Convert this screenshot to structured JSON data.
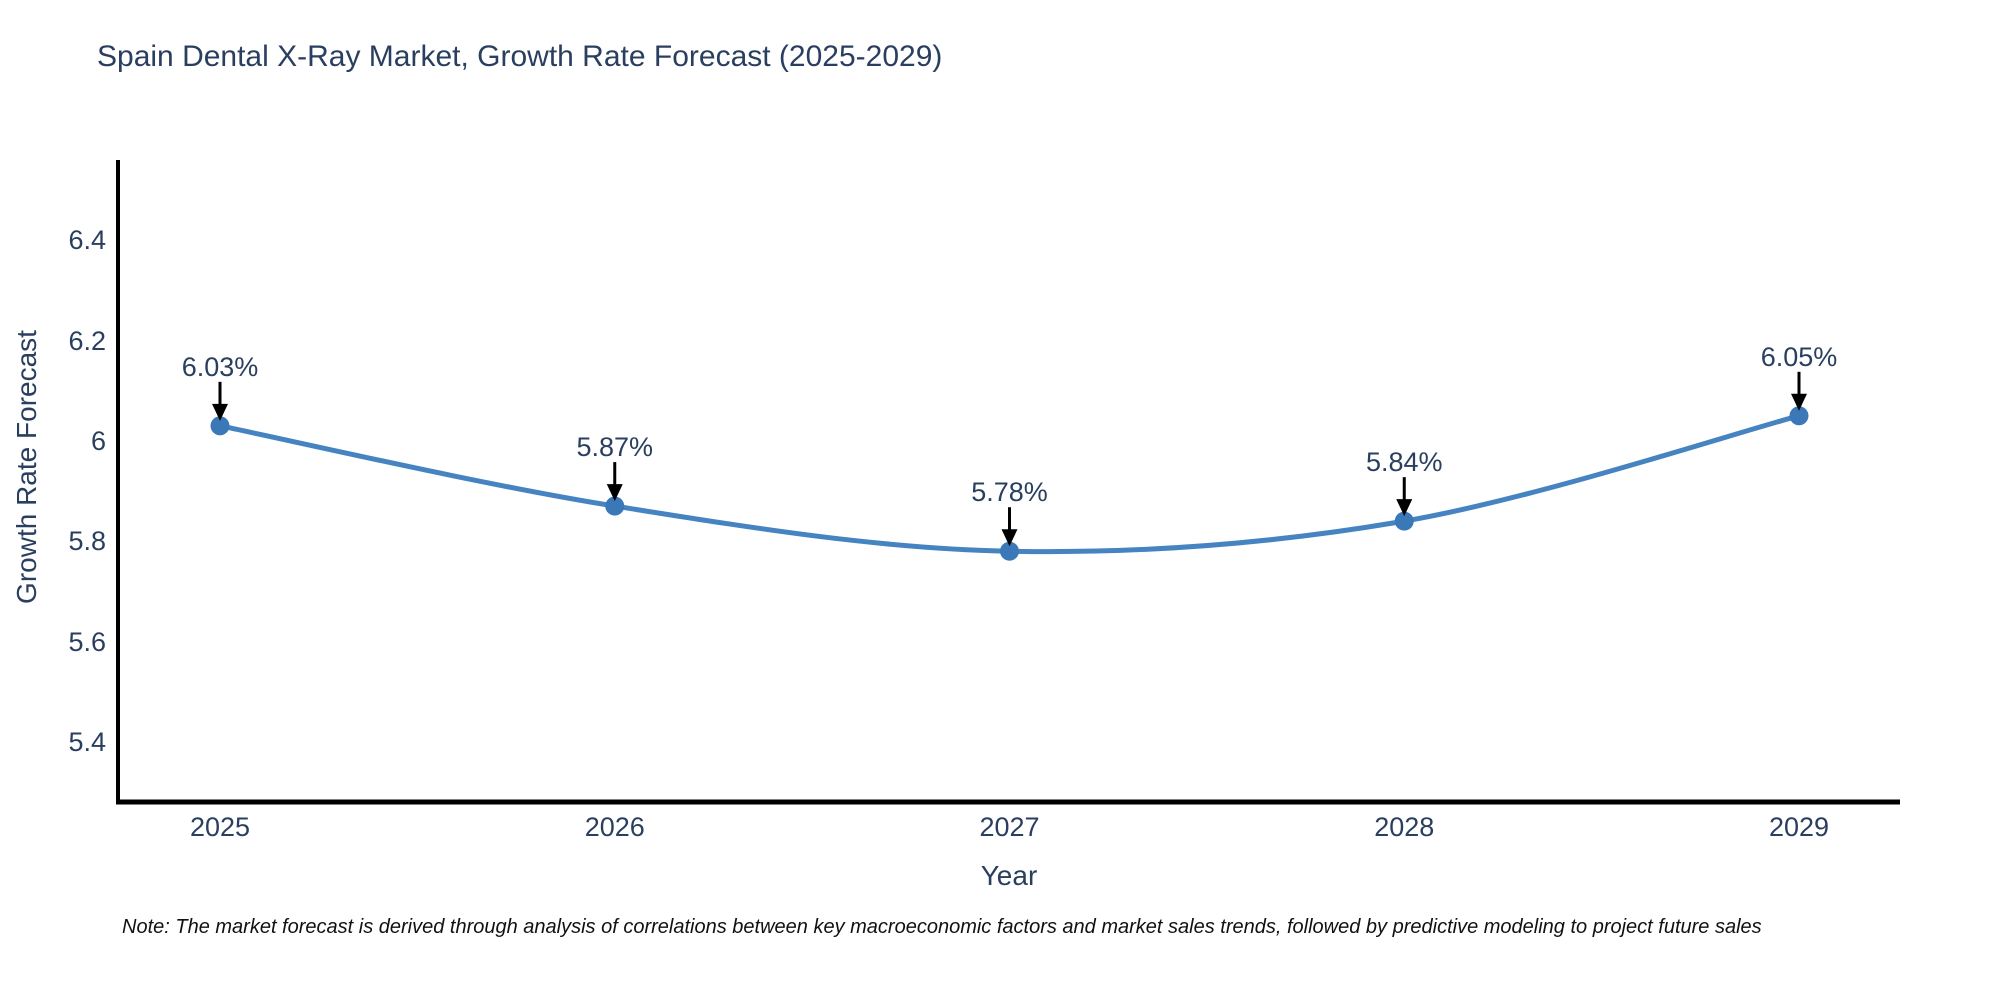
{
  "title": "Spain Dental X-Ray Market, Growth Rate Forecast (2025-2029)",
  "note": "Note: The market forecast is derived through analysis of correlations between key macroeconomic factors and market sales trends, followed by predictive modeling to project future sales",
  "chart_data": {
    "type": "line",
    "title": "Spain Dental X-Ray Market, Growth Rate Forecast (2025-2029)",
    "xlabel": "Year",
    "ylabel": "Growth Rate Forecast",
    "categories": [
      "2025",
      "2026",
      "2027",
      "2028",
      "2029"
    ],
    "series": [
      {
        "name": "Growth Rate Forecast",
        "values": [
          6.03,
          5.87,
          5.78,
          5.84,
          6.05
        ],
        "point_labels": [
          "6.03%",
          "5.87%",
          "5.78%",
          "5.84%",
          "6.05%"
        ]
      }
    ],
    "ylim": [
      5.28,
      6.56
    ],
    "y_ticks": [
      5.4,
      5.6,
      5.8,
      6.0,
      6.2,
      6.4
    ],
    "y_tick_labels": [
      "5.4",
      "5.6",
      "5.8",
      "6",
      "6.2",
      "6.4"
    ],
    "grid": false,
    "legend": "none",
    "line_shape": "spline",
    "annotations_style": "value label with black arrow pointing down to marker",
    "colors": {
      "line": "#4584c1",
      "marker": "#3a78b8",
      "axis": "#000000",
      "chart_text": "#2a3f5f",
      "annotation_arrow": "#000000",
      "note_text": "#111111",
      "background": "#ffffff"
    }
  }
}
